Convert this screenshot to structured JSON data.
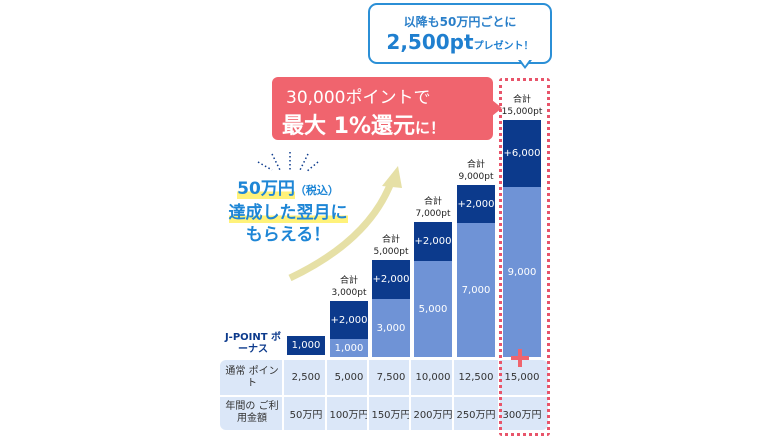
{
  "blue_bubble": {
    "line1": "以降も50万円ごとに",
    "amount": "2,500pt",
    "suffix": "プレゼント！"
  },
  "red_bubble": {
    "line1": "30,000ポイントで",
    "line2_main": "最大 1%還元",
    "line2_suffix": "に！"
  },
  "left_text": {
    "line1": "50万円",
    "line1_small": "（税込）",
    "line2": "達成した翌月に",
    "line3": "もらえる！"
  },
  "row_labels": {
    "bonus": "J-POINT ボーナス",
    "normal": "通常 ポイント",
    "spend": "年間の ご利用金額"
  },
  "columns": [
    {
      "base": "",
      "extra": "1,000",
      "total_label": "",
      "total": "",
      "normal": "2,500",
      "spend": "50万円"
    },
    {
      "base": "1,000",
      "extra": "+2,000",
      "total_label": "合計",
      "total": "3,000pt",
      "normal": "5,000",
      "spend": "100万円"
    },
    {
      "base": "3,000",
      "extra": "+2,000",
      "total_label": "合計",
      "total": "5,000pt",
      "normal": "7,500",
      "spend": "150万円"
    },
    {
      "base": "5,000",
      "extra": "+2,000",
      "total_label": "合計",
      "total": "7,000pt",
      "normal": "10,000",
      "spend": "200万円"
    },
    {
      "base": "7,000",
      "extra": "+2,000",
      "total_label": "合計",
      "total": "9,000pt",
      "normal": "12,500",
      "spend": "250万円"
    },
    {
      "base": "9,000",
      "extra": "+6,000",
      "total_label": "合計",
      "total": "15,000pt",
      "normal": "15,000",
      "spend": "300万円"
    }
  ],
  "colors": {
    "dark": "#0c3a8c",
    "light": "#6f93d6",
    "accent_red": "#f0646e",
    "accent_blue": "#2b8fd6"
  }
}
